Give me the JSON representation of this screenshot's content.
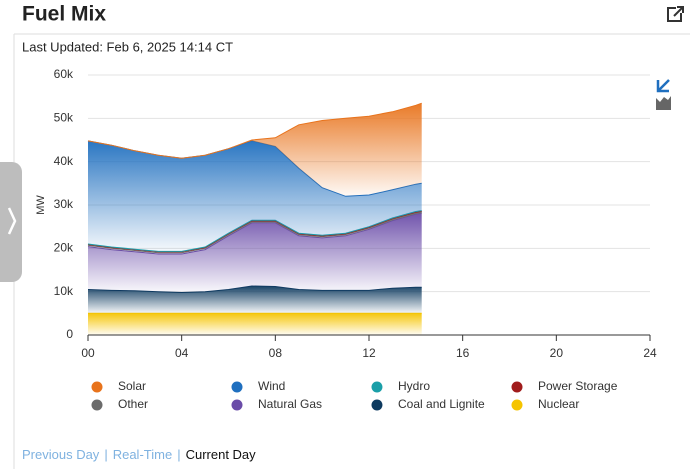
{
  "header": {
    "title": "Fuel Mix"
  },
  "updated": "Last Updated: Feb 6, 2025 14:14 CT",
  "footer": {
    "links": [
      "Previous Day",
      "Real-Time",
      "Current Day"
    ],
    "separator": "|"
  },
  "chart_data": {
    "type": "stacked-area",
    "ylabel": "MW",
    "x": [
      0,
      1,
      2,
      3,
      4,
      5,
      6,
      7,
      8,
      9,
      10,
      11,
      12,
      13,
      14,
      14.25
    ],
    "xlim": [
      0,
      24
    ],
    "xticks": [
      {
        "value": 0,
        "label": "00"
      },
      {
        "value": 4,
        "label": "04"
      },
      {
        "value": 8,
        "label": "08"
      },
      12,
      16,
      20,
      24
    ],
    "ylim": [
      0,
      60000
    ],
    "yticks": [
      0,
      {
        "value": 10000,
        "label": "10k"
      },
      {
        "value": 20000,
        "label": "20k"
      },
      {
        "value": 30000,
        "label": "30k"
      },
      {
        "value": 40000,
        "label": "40k"
      },
      {
        "value": 50000,
        "label": "50k"
      },
      {
        "value": 60000,
        "label": "60k"
      }
    ],
    "grid": true,
    "series": [
      {
        "name": "Solar",
        "color": "#e8731c",
        "values": [
          0,
          0,
          0,
          0,
          0,
          0,
          0,
          200,
          2000,
          10000,
          15500,
          18000,
          18200,
          18000,
          18200,
          18500
        ]
      },
      {
        "name": "Wind",
        "color": "#1f6fbf",
        "values": [
          23800,
          23500,
          22700,
          22200,
          21500,
          21200,
          19500,
          18300,
          17000,
          15000,
          11000,
          8500,
          7300,
          6500,
          6300,
          6300
        ]
      },
      {
        "name": "Hydro",
        "color": "#1a9fa8",
        "values": [
          100,
          100,
          100,
          100,
          100,
          100,
          100,
          100,
          100,
          100,
          100,
          100,
          100,
          100,
          100,
          100
        ]
      },
      {
        "name": "Power Storage",
        "color": "#a01c1c",
        "values": [
          200,
          200,
          200,
          200,
          200,
          200,
          200,
          200,
          200,
          200,
          200,
          200,
          200,
          200,
          200,
          200
        ]
      },
      {
        "name": "Other",
        "color": "#6b6b6b",
        "values": [
          300,
          300,
          300,
          300,
          300,
          300,
          300,
          300,
          300,
          300,
          300,
          300,
          300,
          300,
          300,
          300
        ]
      },
      {
        "name": "Natural Gas",
        "color": "#6a4ca8",
        "values": [
          9900,
          9400,
          9000,
          8700,
          8900,
          9700,
          12400,
          14600,
          14700,
          12400,
          12100,
          12600,
          14100,
          15600,
          16900,
          17100
        ]
      },
      {
        "name": "Coal and Lignite",
        "color": "#0d3a5f",
        "values": [
          5500,
          5300,
          5200,
          5000,
          4800,
          5000,
          5500,
          6300,
          6200,
          5500,
          5300,
          5300,
          5300,
          5800,
          6000,
          6000
        ]
      },
      {
        "name": "Nuclear",
        "color": "#f5c400",
        "values": [
          5000,
          5000,
          5000,
          5000,
          5000,
          5000,
          5000,
          5000,
          5000,
          5000,
          5000,
          5000,
          5000,
          5000,
          5000,
          5000
        ]
      }
    ]
  }
}
